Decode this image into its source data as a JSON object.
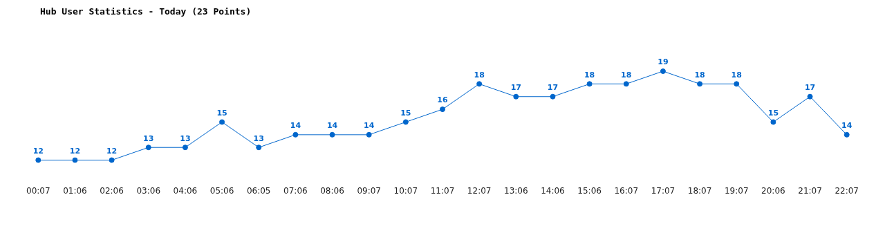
{
  "chart_data": {
    "type": "line",
    "title": "Hub User Statistics - Today (23 Points)",
    "categories": [
      "00:07",
      "01:06",
      "02:06",
      "03:06",
      "04:06",
      "05:06",
      "06:05",
      "07:06",
      "08:06",
      "09:07",
      "10:07",
      "11:07",
      "12:07",
      "13:06",
      "14:06",
      "15:06",
      "16:07",
      "17:07",
      "18:07",
      "19:07",
      "20:06",
      "21:07",
      "22:07"
    ],
    "series": [
      {
        "color": "#0066cc",
        "values": [
          12,
          12,
          12,
          13,
          13,
          15,
          13,
          14,
          14,
          14,
          15,
          16,
          18,
          17,
          17,
          18,
          18,
          19,
          18,
          18,
          15,
          17,
          14
        ]
      }
    ],
    "data_labels": true,
    "marker": "circle",
    "line_style": "solid",
    "grid": false,
    "legend": false,
    "tick_labels": "x"
  }
}
